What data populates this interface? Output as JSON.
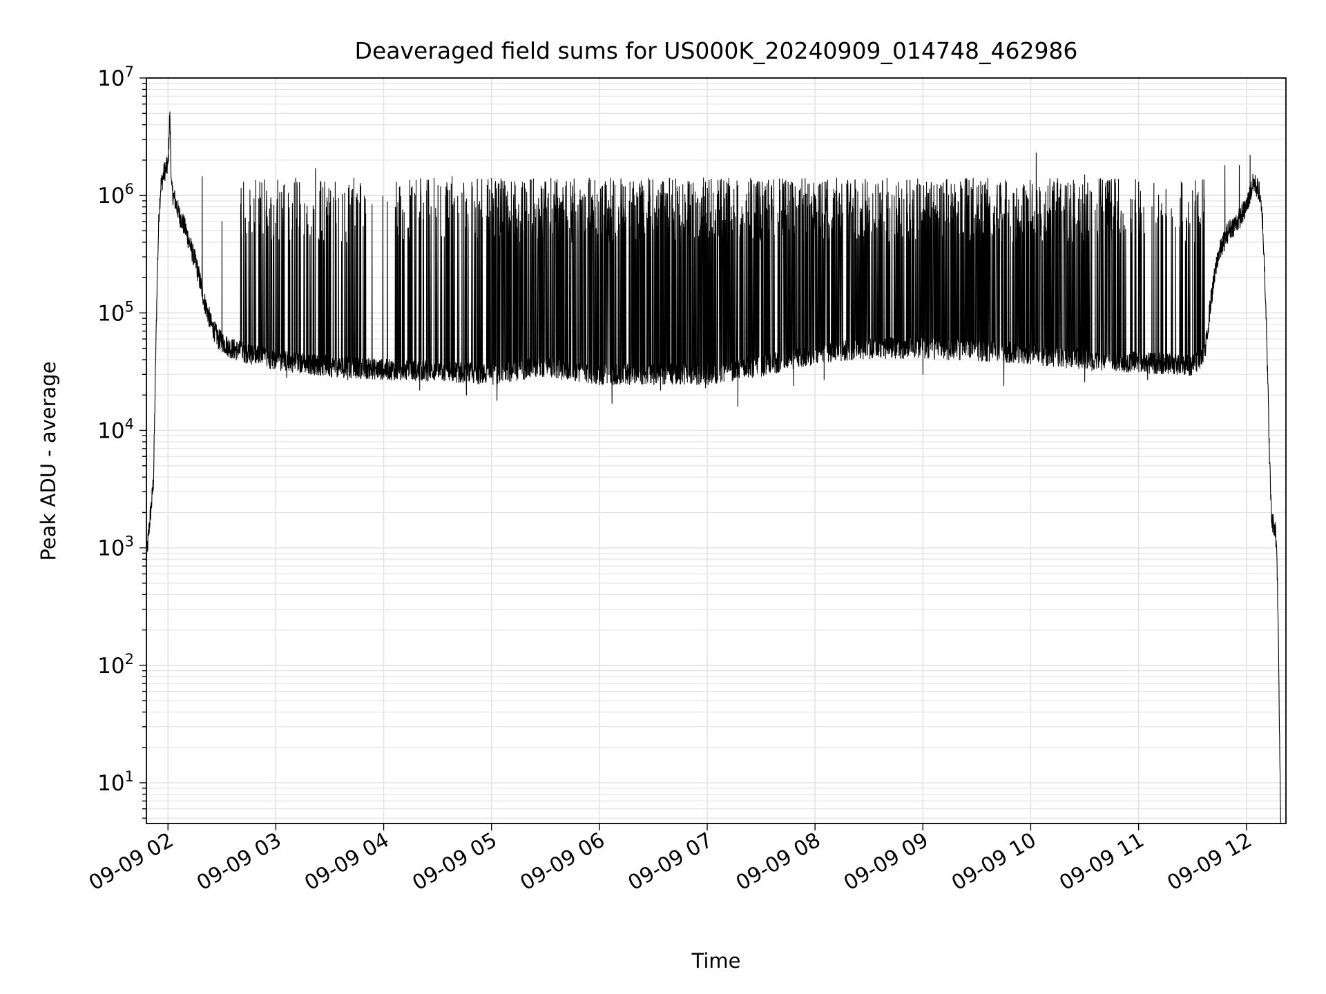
{
  "chart_data": {
    "type": "line",
    "title": "Deaveraged field sums for US000K_20240909_014748_462986",
    "xlabel": "Time",
    "ylabel": "Peak ADU - average",
    "yscale": "log",
    "ylim": [
      4.5,
      10000000
    ],
    "xlim": [
      "2024-09-09 01:48",
      "2024-09-09 12:22"
    ],
    "grid": true,
    "x_ticks": [
      {
        "t": "2024-09-09 02:00",
        "label": "09-09 02"
      },
      {
        "t": "2024-09-09 03:00",
        "label": "09-09 03"
      },
      {
        "t": "2024-09-09 04:00",
        "label": "09-09 04"
      },
      {
        "t": "2024-09-09 05:00",
        "label": "09-09 05"
      },
      {
        "t": "2024-09-09 06:00",
        "label": "09-09 06"
      },
      {
        "t": "2024-09-09 07:00",
        "label": "09-09 07"
      },
      {
        "t": "2024-09-09 08:00",
        "label": "09-09 08"
      },
      {
        "t": "2024-09-09 09:00",
        "label": "09-09 09"
      },
      {
        "t": "2024-09-09 10:00",
        "label": "09-09 10"
      },
      {
        "t": "2024-09-09 11:00",
        "label": "09-09 11"
      },
      {
        "t": "2024-09-09 12:00",
        "label": "09-09 12"
      }
    ],
    "y_ticks": [
      {
        "v": 10,
        "base": "10",
        "exp": "1"
      },
      {
        "v": 100,
        "base": "10",
        "exp": "2"
      },
      {
        "v": 1000,
        "base": "10",
        "exp": "3"
      },
      {
        "v": 10000,
        "base": "10",
        "exp": "4"
      },
      {
        "v": 100000,
        "base": "10",
        "exp": "5"
      },
      {
        "v": 1000000,
        "base": "10",
        "exp": "6"
      },
      {
        "v": 10000000,
        "base": "10",
        "exp": "7"
      }
    ],
    "line_color": "#000000",
    "grid_color": "#e3e3e3",
    "series": [
      {
        "points": [
          [
            "2024-09-09 01:48",
            800
          ],
          [
            "2024-09-09 01:49",
            1200
          ],
          [
            "2024-09-09 01:50",
            1800
          ],
          [
            "2024-09-09 01:51",
            2500
          ],
          [
            "2024-09-09 01:52",
            4000
          ],
          [
            "2024-09-09 01:53",
            30000
          ],
          [
            "2024-09-09 01:54",
            200000
          ],
          [
            "2024-09-09 01:55",
            700000
          ],
          [
            "2024-09-09 01:56",
            1200000
          ],
          [
            "2024-09-09 01:58",
            1600000
          ],
          [
            "2024-09-09 02:00",
            1800000
          ],
          [
            "2024-09-09 02:01",
            5000000
          ],
          [
            "2024-09-09 02:02",
            1100000
          ],
          [
            "2024-09-09 02:04",
            900000
          ],
          [
            "2024-09-09 02:06",
            700000
          ],
          [
            "2024-09-09 02:08",
            600000
          ],
          [
            "2024-09-09 02:10",
            500000
          ],
          [
            "2024-09-09 02:13",
            350000
          ],
          [
            "2024-09-09 02:16",
            250000
          ],
          [
            "2024-09-09 02:20",
            130000
          ],
          [
            "2024-09-09 02:24",
            80000
          ],
          [
            "2024-09-09 02:28",
            60000
          ],
          [
            "2024-09-09 02:35",
            50000
          ],
          [
            "2024-09-09 02:45",
            45000
          ],
          [
            "2024-09-09 03:00",
            40000
          ],
          [
            "2024-09-09 03:30",
            35000
          ],
          [
            "2024-09-09 04:00",
            33000
          ],
          [
            "2024-09-09 04:30",
            32000
          ],
          [
            "2024-09-09 05:00",
            30000
          ],
          [
            "2024-09-09 05:30",
            35000
          ],
          [
            "2024-09-09 06:00",
            30000
          ],
          [
            "2024-09-09 06:30",
            30000
          ],
          [
            "2024-09-09 07:00",
            30000
          ],
          [
            "2024-09-09 07:30",
            35000
          ],
          [
            "2024-09-09 08:00",
            45000
          ],
          [
            "2024-09-09 08:30",
            50000
          ],
          [
            "2024-09-09 09:00",
            50000
          ],
          [
            "2024-09-09 09:30",
            48000
          ],
          [
            "2024-09-09 10:00",
            45000
          ],
          [
            "2024-09-09 10:30",
            40000
          ],
          [
            "2024-09-09 11:00",
            38000
          ],
          [
            "2024-09-09 11:30",
            36000
          ],
          [
            "2024-09-09 11:37",
            45000
          ],
          [
            "2024-09-09 11:40",
            120000
          ],
          [
            "2024-09-09 11:44",
            300000
          ],
          [
            "2024-09-09 11:50",
            500000
          ],
          [
            "2024-09-09 11:55",
            600000
          ],
          [
            "2024-09-09 12:00",
            800000
          ],
          [
            "2024-09-09 12:04",
            1300000
          ],
          [
            "2024-09-09 12:07",
            1100000
          ],
          [
            "2024-09-09 12:09",
            600000
          ],
          [
            "2024-09-09 12:11",
            100000
          ],
          [
            "2024-09-09 12:13",
            5000
          ],
          [
            "2024-09-09 12:14",
            1700
          ],
          [
            "2024-09-09 12:16",
            1500
          ],
          [
            "2024-09-09 12:17",
            900
          ],
          [
            "2024-09-09 12:18",
            100
          ],
          [
            "2024-09-09 12:19",
            5
          ]
        ],
        "peaks": [
          [
            "2024-09-09 02:19",
            1450000
          ],
          [
            "2024-09-09 02:30",
            600000
          ],
          [
            "2024-09-09 02:42",
            1300000
          ],
          [
            "2024-09-09 02:51",
            1300000
          ],
          [
            "2024-09-09 03:01",
            1350000
          ],
          [
            "2024-09-09 03:11",
            1400000
          ],
          [
            "2024-09-09 03:22",
            1700000
          ],
          [
            "2024-09-09 03:33",
            1300000
          ],
          [
            "2024-09-09 03:42",
            1100000
          ],
          [
            "2024-09-09 03:50",
            700000
          ],
          [
            "2024-09-09 04:07",
            1300000
          ],
          [
            "2024-09-09 04:18",
            1350000
          ],
          [
            "2024-09-09 04:28",
            1400000
          ],
          [
            "2024-09-09 04:38",
            1450000
          ],
          [
            "2024-09-09 04:49",
            1300000
          ],
          [
            "2024-09-09 05:00",
            1400000
          ],
          [
            "2024-09-09 05:11",
            1300000
          ],
          [
            "2024-09-09 05:22",
            1350000
          ],
          [
            "2024-09-09 05:33",
            1400000
          ],
          [
            "2024-09-09 05:44",
            1300000
          ],
          [
            "2024-09-09 05:55",
            1350000
          ],
          [
            "2024-09-09 06:06",
            1400000
          ],
          [
            "2024-09-09 06:17",
            1300000
          ],
          [
            "2024-09-09 06:28",
            1350000
          ],
          [
            "2024-09-09 06:39",
            1400000
          ],
          [
            "2024-09-09 06:50",
            1300000
          ],
          [
            "2024-09-09 07:01",
            1350000
          ],
          [
            "2024-09-09 07:12",
            1400000
          ],
          [
            "2024-09-09 07:23",
            1300000
          ],
          [
            "2024-09-09 07:34",
            1350000
          ],
          [
            "2024-09-09 07:45",
            1300000
          ],
          [
            "2024-09-09 07:56",
            1250000
          ],
          [
            "2024-09-09 08:07",
            1350000
          ],
          [
            "2024-09-09 08:18",
            1350000
          ],
          [
            "2024-09-09 08:29",
            1300000
          ],
          [
            "2024-09-09 08:40",
            1400000
          ],
          [
            "2024-09-09 08:51",
            1350000
          ],
          [
            "2024-09-09 09:02",
            1300000
          ],
          [
            "2024-09-09 09:13",
            1350000
          ],
          [
            "2024-09-09 09:24",
            1400000
          ],
          [
            "2024-09-09 09:35",
            1300000
          ],
          [
            "2024-09-09 09:46",
            1350000
          ],
          [
            "2024-09-09 10:03",
            2300000
          ],
          [
            "2024-09-09 10:15",
            1300000
          ],
          [
            "2024-09-09 10:30",
            1500000
          ],
          [
            "2024-09-09 10:45",
            900000
          ],
          [
            "2024-09-09 11:00",
            1300000
          ],
          [
            "2024-09-09 11:15",
            700000
          ],
          [
            "2024-09-09 11:30",
            1100000
          ],
          [
            "2024-09-09 11:48",
            1800000
          ],
          [
            "2024-09-09 11:56",
            1800000
          ],
          [
            "2024-09-09 12:02",
            2200000
          ]
        ],
        "dips": [
          [
            "2024-09-09 03:06",
            28000
          ],
          [
            "2024-09-09 03:40",
            27000
          ],
          [
            "2024-09-09 04:20",
            22000
          ],
          [
            "2024-09-09 04:46",
            20000
          ],
          [
            "2024-09-09 05:03",
            18000
          ],
          [
            "2024-09-09 05:58",
            25000
          ],
          [
            "2024-09-09 06:07",
            17000
          ],
          [
            "2024-09-09 06:34",
            22000
          ],
          [
            "2024-09-09 06:59",
            23000
          ],
          [
            "2024-09-09 07:17",
            16000
          ],
          [
            "2024-09-09 07:48",
            24000
          ],
          [
            "2024-09-09 08:05",
            27000
          ],
          [
            "2024-09-09 09:00",
            30000
          ],
          [
            "2024-09-09 09:45",
            24000
          ],
          [
            "2024-09-09 10:30",
            26000
          ],
          [
            "2024-09-09 11:05",
            27000
          ]
        ]
      }
    ]
  }
}
